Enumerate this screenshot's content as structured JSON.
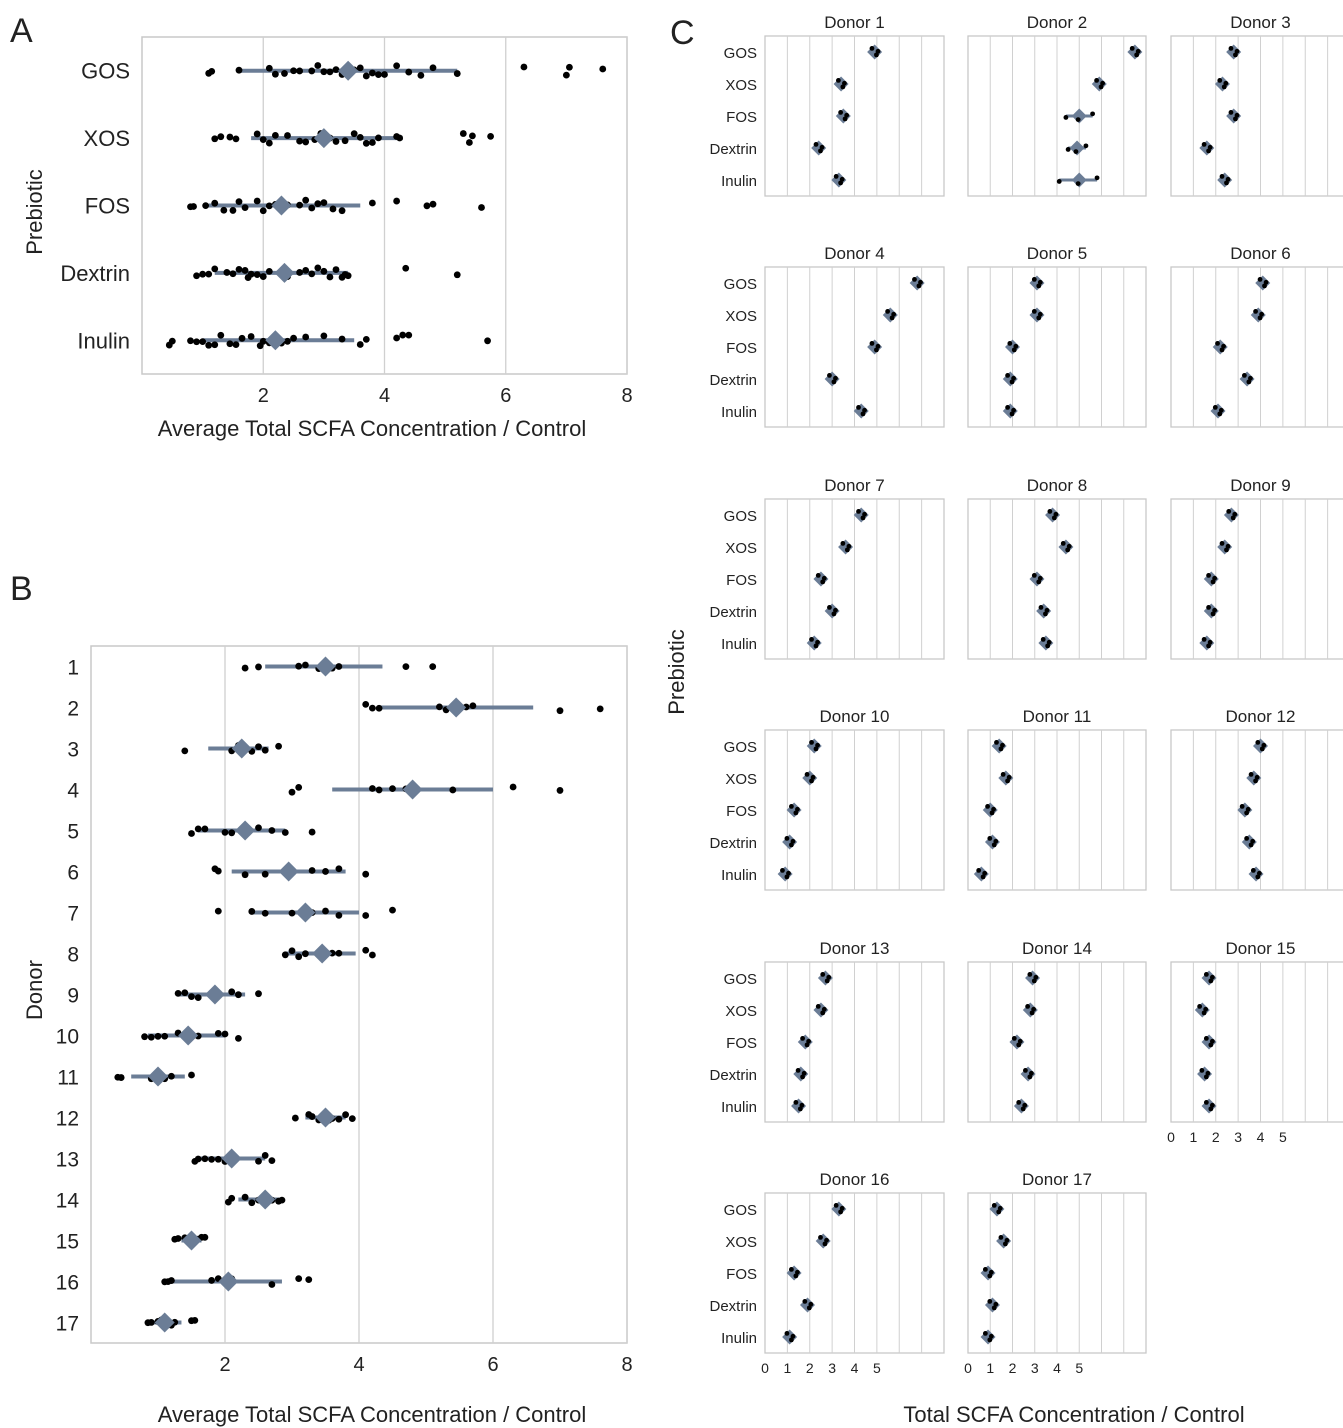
{
  "panel_labels": {
    "a": "A",
    "b": "B",
    "c": "C"
  },
  "colors": {
    "summary": "#6b7d96",
    "points": "#000000",
    "grid": "#d0d0d0",
    "frame": "#c8c8c8"
  },
  "chart_data": [
    {
      "panel": "A",
      "type": "scatter",
      "title": "",
      "xlabel": "Average Total SCFA Concentration / Control",
      "ylabel": "Prebiotic",
      "xlim": [
        0,
        8
      ],
      "xticks": [
        2,
        4,
        6,
        8
      ],
      "grid": "vertical",
      "categories": [
        "GOS",
        "XOS",
        "FOS",
        "Dextrin",
        "Inulin"
      ],
      "summary": [
        {
          "category": "GOS",
          "mean": 3.4,
          "lo": 1.6,
          "hi": 5.2
        },
        {
          "category": "XOS",
          "mean": 3.0,
          "lo": 1.8,
          "hi": 4.3
        },
        {
          "category": "FOS",
          "mean": 2.3,
          "lo": 1.1,
          "hi": 3.6
        },
        {
          "category": "Dextrin",
          "mean": 2.35,
          "lo": 1.2,
          "hi": 3.4
        },
        {
          "category": "Inulin",
          "mean": 2.2,
          "lo": 1.0,
          "hi": 3.5
        }
      ],
      "points": [
        {
          "category": "GOS",
          "x": [
            1.1,
            1.15,
            1.6,
            2.1,
            2.2,
            2.35,
            2.5,
            2.6,
            2.8,
            2.9,
            3.0,
            3.1,
            3.2,
            3.3,
            3.4,
            3.5,
            3.6,
            3.7,
            3.8,
            3.9,
            4.0,
            4.2,
            4.4,
            4.6,
            4.8,
            5.2,
            6.3,
            7.0,
            7.05,
            7.6
          ]
        },
        {
          "category": "XOS",
          "x": [
            1.2,
            1.3,
            1.45,
            1.55,
            1.9,
            2.0,
            2.1,
            2.2,
            2.4,
            2.6,
            2.7,
            2.85,
            2.95,
            3.1,
            3.2,
            3.35,
            3.5,
            3.6,
            3.7,
            3.8,
            3.9,
            4.2,
            4.25,
            5.3,
            5.4,
            5.45,
            5.75
          ]
        },
        {
          "category": "FOS",
          "x": [
            0.8,
            0.85,
            1.05,
            1.2,
            1.35,
            1.5,
            1.6,
            1.7,
            1.9,
            2.0,
            2.1,
            2.2,
            2.3,
            2.4,
            2.6,
            2.7,
            2.8,
            2.9,
            3.0,
            3.15,
            3.3,
            3.8,
            4.2,
            4.7,
            4.8,
            5.6
          ]
        },
        {
          "category": "Dextrin",
          "x": [
            0.9,
            1.0,
            1.1,
            1.2,
            1.4,
            1.5,
            1.6,
            1.7,
            1.75,
            1.8,
            1.9,
            2.0,
            2.1,
            2.4,
            2.6,
            2.7,
            2.8,
            2.9,
            3.0,
            3.1,
            3.2,
            3.3,
            3.35,
            3.4,
            4.35,
            5.2
          ]
        },
        {
          "category": "Inulin",
          "x": [
            0.45,
            0.5,
            0.8,
            0.9,
            1.0,
            1.1,
            1.2,
            1.3,
            1.45,
            1.55,
            1.65,
            1.8,
            1.95,
            2.0,
            2.1,
            2.2,
            2.3,
            2.4,
            2.5,
            2.7,
            3.0,
            3.3,
            3.6,
            3.7,
            4.2,
            4.3,
            4.4,
            5.7
          ]
        }
      ]
    },
    {
      "panel": "B",
      "type": "scatter",
      "title": "",
      "xlabel": "Average Total SCFA Concentration / Control",
      "ylabel": "Donor",
      "xlim": [
        0,
        8
      ],
      "xticks": [
        2,
        4,
        6,
        8
      ],
      "grid": "vertical",
      "categories": [
        "1",
        "2",
        "3",
        "4",
        "5",
        "6",
        "7",
        "8",
        "9",
        "10",
        "11",
        "12",
        "13",
        "14",
        "15",
        "16",
        "17"
      ],
      "summary": [
        {
          "category": "1",
          "mean": 3.5,
          "lo": 2.6,
          "hi": 4.35
        },
        {
          "category": "2",
          "mean": 5.45,
          "lo": 4.3,
          "hi": 6.6
        },
        {
          "category": "3",
          "mean": 2.25,
          "lo": 1.75,
          "hi": 2.65
        },
        {
          "category": "4",
          "mean": 4.8,
          "lo": 3.6,
          "hi": 6.0
        },
        {
          "category": "5",
          "mean": 2.3,
          "lo": 1.6,
          "hi": 2.9
        },
        {
          "category": "6",
          "mean": 2.95,
          "lo": 2.1,
          "hi": 3.8
        },
        {
          "category": "7",
          "mean": 3.2,
          "lo": 2.4,
          "hi": 4.0
        },
        {
          "category": "8",
          "mean": 3.45,
          "lo": 2.9,
          "hi": 3.95
        },
        {
          "category": "9",
          "mean": 1.85,
          "lo": 1.3,
          "hi": 2.3
        },
        {
          "category": "10",
          "mean": 1.45,
          "lo": 0.85,
          "hi": 2.0
        },
        {
          "category": "11",
          "mean": 1.0,
          "lo": 0.6,
          "hi": 1.4
        },
        {
          "category": "12",
          "mean": 3.5,
          "lo": 3.2,
          "hi": 3.8
        },
        {
          "category": "13",
          "mean": 2.1,
          "lo": 1.6,
          "hi": 2.6
        },
        {
          "category": "14",
          "mean": 2.6,
          "lo": 2.2,
          "hi": 2.85
        },
        {
          "category": "15",
          "mean": 1.5,
          "lo": 1.35,
          "hi": 1.65
        },
        {
          "category": "16",
          "mean": 2.05,
          "lo": 1.2,
          "hi": 2.85
        },
        {
          "category": "17",
          "mean": 1.1,
          "lo": 0.85,
          "hi": 1.35
        }
      ],
      "points": [
        {
          "category": "1",
          "x": [
            2.3,
            2.5,
            3.1,
            3.2,
            3.4,
            3.6,
            3.7,
            4.7,
            5.1
          ]
        },
        {
          "category": "2",
          "x": [
            4.1,
            4.2,
            4.3,
            5.2,
            5.3,
            5.5,
            5.6,
            5.7,
            7.0,
            7.6
          ]
        },
        {
          "category": "3",
          "x": [
            1.4,
            2.1,
            2.2,
            2.3,
            2.4,
            2.5,
            2.6,
            2.8
          ]
        },
        {
          "category": "4",
          "x": [
            3.0,
            3.1,
            4.2,
            4.3,
            4.5,
            4.7,
            5.4,
            6.3,
            7.0
          ]
        },
        {
          "category": "5",
          "x": [
            1.5,
            1.6,
            1.7,
            2.0,
            2.1,
            2.3,
            2.5,
            2.7,
            2.9,
            3.3
          ]
        },
        {
          "category": "6",
          "x": [
            1.85,
            1.9,
            2.3,
            2.6,
            3.0,
            3.3,
            3.5,
            3.7,
            4.1
          ]
        },
        {
          "category": "7",
          "x": [
            1.9,
            2.4,
            2.6,
            3.0,
            3.3,
            3.5,
            3.7,
            4.1,
            4.5
          ]
        },
        {
          "category": "8",
          "x": [
            2.9,
            3.0,
            3.1,
            3.2,
            3.4,
            3.5,
            3.6,
            3.7,
            4.1,
            4.2
          ]
        },
        {
          "category": "9",
          "x": [
            1.3,
            1.4,
            1.5,
            1.6,
            1.9,
            2.1,
            2.2,
            2.5
          ]
        },
        {
          "category": "10",
          "x": [
            0.8,
            0.9,
            1.0,
            1.1,
            1.3,
            1.4,
            1.6,
            1.9,
            2.0,
            2.2
          ]
        },
        {
          "category": "11",
          "x": [
            0.4,
            0.45,
            0.9,
            1.0,
            1.1,
            1.2,
            1.5
          ]
        },
        {
          "category": "12",
          "x": [
            3.05,
            3.25,
            3.3,
            3.4,
            3.5,
            3.55,
            3.6,
            3.7,
            3.8,
            3.9
          ]
        },
        {
          "category": "13",
          "x": [
            1.55,
            1.6,
            1.7,
            1.8,
            1.9,
            2.0,
            2.5,
            2.6,
            2.7
          ]
        },
        {
          "category": "14",
          "x": [
            2.05,
            2.1,
            2.3,
            2.4,
            2.5,
            2.6,
            2.7,
            2.8,
            2.85
          ]
        },
        {
          "category": "15",
          "x": [
            1.25,
            1.3,
            1.4,
            1.45,
            1.5,
            1.55,
            1.6,
            1.65,
            1.7
          ]
        },
        {
          "category": "16",
          "x": [
            1.1,
            1.15,
            1.2,
            1.8,
            1.9,
            2.1,
            2.7,
            3.1,
            3.25
          ]
        },
        {
          "category": "17",
          "x": [
            0.85,
            0.9,
            1.0,
            1.05,
            1.1,
            1.2,
            1.25,
            1.5,
            1.55
          ]
        }
      ]
    },
    {
      "panel": "C",
      "type": "scatter",
      "title": "",
      "xlabel": "Total SCFA Concentration / Control",
      "ylabel": "Prebiotic",
      "xlim": [
        0,
        8
      ],
      "xticks": [
        0,
        1,
        2,
        3,
        4,
        5
      ],
      "grid": "vertical",
      "categories": [
        "GOS",
        "XOS",
        "FOS",
        "Dextrin",
        "Inulin"
      ],
      "facets": [
        {
          "title": "Donor 1",
          "values": {
            "GOS": 4.9,
            "XOS": 3.4,
            "FOS": 3.5,
            "Dextrin": 2.4,
            "Inulin": 3.3
          },
          "ci": {}
        },
        {
          "title": "Donor 2",
          "values": {
            "GOS": 7.5,
            "XOS": 5.9,
            "FOS": 5.0,
            "Dextrin": 4.9,
            "Inulin": 5.0
          },
          "ci": {
            "FOS": [
              4.4,
              5.6
            ],
            "Dextrin": [
              4.5,
              5.3
            ],
            "Inulin": [
              4.1,
              5.8
            ]
          }
        },
        {
          "title": "Donor 3",
          "values": {
            "GOS": 2.8,
            "XOS": 2.3,
            "FOS": 2.8,
            "Dextrin": 1.6,
            "Inulin": 2.4
          },
          "ci": {}
        },
        {
          "title": "Donor 4",
          "values": {
            "GOS": 6.8,
            "XOS": 5.6,
            "FOS": 4.9,
            "Dextrin": 3.0,
            "Inulin": 4.3
          },
          "ci": {}
        },
        {
          "title": "Donor 5",
          "values": {
            "GOS": 3.1,
            "XOS": 3.1,
            "FOS": 2.0,
            "Dextrin": 1.9,
            "Inulin": 1.9
          },
          "ci": {}
        },
        {
          "title": "Donor 6",
          "values": {
            "GOS": 4.1,
            "XOS": 3.9,
            "FOS": 2.2,
            "Dextrin": 3.4,
            "Inulin": 2.1
          },
          "ci": {}
        },
        {
          "title": "Donor 7",
          "values": {
            "GOS": 4.3,
            "XOS": 3.6,
            "FOS": 2.5,
            "Dextrin": 3.0,
            "Inulin": 2.2
          },
          "ci": {}
        },
        {
          "title": "Donor 8",
          "values": {
            "GOS": 3.8,
            "XOS": 4.4,
            "FOS": 3.1,
            "Dextrin": 3.4,
            "Inulin": 3.5
          },
          "ci": {}
        },
        {
          "title": "Donor 9",
          "values": {
            "GOS": 2.7,
            "XOS": 2.4,
            "FOS": 1.8,
            "Dextrin": 1.8,
            "Inulin": 1.6
          },
          "ci": {}
        },
        {
          "title": "Donor 10",
          "values": {
            "GOS": 2.2,
            "XOS": 2.0,
            "FOS": 1.3,
            "Dextrin": 1.1,
            "Inulin": 0.9
          },
          "ci": {}
        },
        {
          "title": "Donor 11",
          "values": {
            "GOS": 1.4,
            "XOS": 1.7,
            "FOS": 1.0,
            "Dextrin": 1.1,
            "Inulin": 0.6
          },
          "ci": {}
        },
        {
          "title": "Donor 12",
          "values": {
            "GOS": 4.0,
            "XOS": 3.7,
            "FOS": 3.3,
            "Dextrin": 3.5,
            "Inulin": 3.8
          },
          "ci": {}
        },
        {
          "title": "Donor 13",
          "values": {
            "GOS": 2.7,
            "XOS": 2.5,
            "FOS": 1.8,
            "Dextrin": 1.6,
            "Inulin": 1.5
          },
          "ci": {}
        },
        {
          "title": "Donor 14",
          "values": {
            "GOS": 2.9,
            "XOS": 2.8,
            "FOS": 2.2,
            "Dextrin": 2.7,
            "Inulin": 2.4
          },
          "ci": {}
        },
        {
          "title": "Donor 15",
          "values": {
            "GOS": 1.7,
            "XOS": 1.4,
            "FOS": 1.7,
            "Dextrin": 1.5,
            "Inulin": 1.7
          },
          "ci": {}
        },
        {
          "title": "Donor 16",
          "values": {
            "GOS": 3.3,
            "XOS": 2.6,
            "FOS": 1.3,
            "Dextrin": 1.9,
            "Inulin": 1.1
          },
          "ci": {}
        },
        {
          "title": "Donor 17",
          "values": {
            "GOS": 1.3,
            "XOS": 1.6,
            "FOS": 0.9,
            "Dextrin": 1.1,
            "Inulin": 0.9
          },
          "ci": {}
        }
      ]
    }
  ]
}
